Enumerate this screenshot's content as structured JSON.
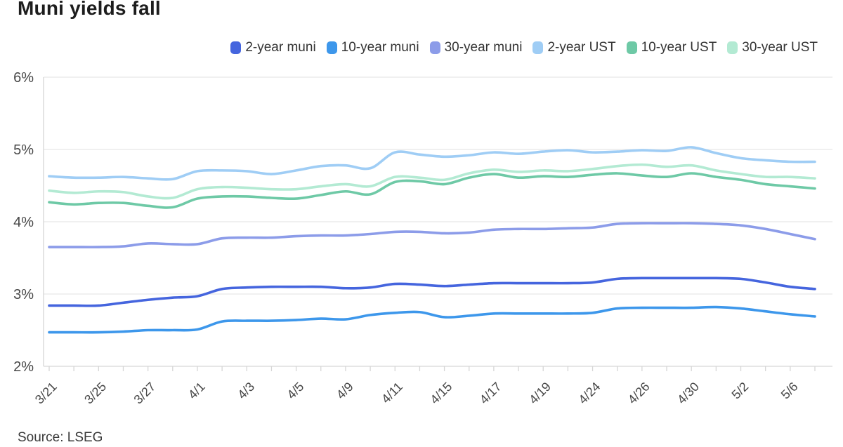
{
  "chart_data": {
    "type": "line",
    "title": "Muni yields fall",
    "source": "Source: LSEG",
    "ylim": [
      2,
      6
    ],
    "yticks": [
      6,
      5,
      4,
      3,
      2
    ],
    "ytick_suffix": "%",
    "grid": "horizontal",
    "legend_position": "top-right",
    "n_points": 32,
    "x_tick_indices": [
      0,
      2,
      4,
      6,
      8,
      10,
      12,
      14,
      16,
      18,
      20,
      22,
      24,
      26,
      28,
      30
    ],
    "x_tick_labels": [
      "3/21",
      "3/25",
      "3/27",
      "4/1",
      "4/3",
      "4/5",
      "4/9",
      "4/11",
      "4/15",
      "4/17",
      "4/19",
      "4/24",
      "4/26",
      "4/30",
      "5/2",
      "5/6"
    ],
    "colors": {
      "grid": "#e6e6e6",
      "axis": "#d6d6d6",
      "tick_label": "#474747"
    },
    "series": [
      {
        "name": "2-year muni",
        "color": "#4565DE",
        "values": [
          2.84,
          2.84,
          2.84,
          2.88,
          2.92,
          2.95,
          2.97,
          3.07,
          3.09,
          3.1,
          3.1,
          3.1,
          3.08,
          3.09,
          3.14,
          3.13,
          3.11,
          3.13,
          3.15,
          3.15,
          3.15,
          3.15,
          3.16,
          3.21,
          3.22,
          3.22,
          3.22,
          3.22,
          3.21,
          3.16,
          3.1,
          3.07
        ]
      },
      {
        "name": "10-year muni",
        "color": "#3D97EB",
        "values": [
          2.47,
          2.47,
          2.47,
          2.48,
          2.5,
          2.5,
          2.51,
          2.62,
          2.63,
          2.63,
          2.64,
          2.66,
          2.65,
          2.71,
          2.74,
          2.75,
          2.68,
          2.7,
          2.73,
          2.73,
          2.73,
          2.73,
          2.74,
          2.8,
          2.81,
          2.81,
          2.81,
          2.82,
          2.8,
          2.76,
          2.72,
          2.69
        ]
      },
      {
        "name": "30-year muni",
        "color": "#8C9CE9",
        "values": [
          3.65,
          3.65,
          3.65,
          3.66,
          3.7,
          3.69,
          3.69,
          3.77,
          3.78,
          3.78,
          3.8,
          3.81,
          3.81,
          3.83,
          3.86,
          3.86,
          3.84,
          3.85,
          3.89,
          3.9,
          3.9,
          3.91,
          3.92,
          3.97,
          3.98,
          3.98,
          3.98,
          3.97,
          3.95,
          3.9,
          3.83,
          3.76
        ]
      },
      {
        "name": "2-year UST",
        "color": "#9FCDF5",
        "values": [
          4.63,
          4.61,
          4.61,
          4.62,
          4.6,
          4.59,
          4.7,
          4.71,
          4.7,
          4.66,
          4.71,
          4.77,
          4.78,
          4.74,
          4.96,
          4.93,
          4.9,
          4.92,
          4.96,
          4.94,
          4.97,
          4.99,
          4.96,
          4.97,
          4.99,
          4.98,
          5.03,
          4.95,
          4.88,
          4.85,
          4.83,
          4.83
        ]
      },
      {
        "name": "10-year UST",
        "color": "#6EC9A6",
        "values": [
          4.27,
          4.24,
          4.26,
          4.26,
          4.22,
          4.2,
          4.32,
          4.35,
          4.35,
          4.33,
          4.32,
          4.37,
          4.42,
          4.38,
          4.55,
          4.56,
          4.52,
          4.61,
          4.66,
          4.61,
          4.63,
          4.62,
          4.65,
          4.67,
          4.64,
          4.62,
          4.67,
          4.62,
          4.58,
          4.52,
          4.49,
          4.46
        ]
      },
      {
        "name": "30-year UST",
        "color": "#B3EAD3",
        "values": [
          4.43,
          4.4,
          4.42,
          4.41,
          4.35,
          4.33,
          4.45,
          4.48,
          4.47,
          4.45,
          4.45,
          4.49,
          4.52,
          4.49,
          4.62,
          4.61,
          4.58,
          4.67,
          4.72,
          4.69,
          4.71,
          4.7,
          4.73,
          4.77,
          4.79,
          4.76,
          4.78,
          4.71,
          4.66,
          4.62,
          4.62,
          4.6
        ]
      }
    ]
  }
}
